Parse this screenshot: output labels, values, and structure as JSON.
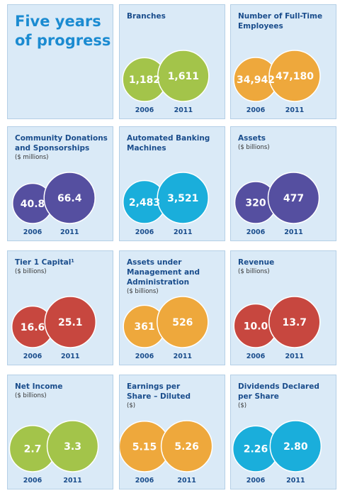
{
  "page": {
    "title": "Five years\nof progress"
  },
  "chart_data": [
    {
      "type": "bubble",
      "title": "Branches",
      "unit": "",
      "colors": [
        "#a3c44a",
        "#a3c44a"
      ],
      "categories": [
        "2006",
        "2011"
      ],
      "values": [
        1182,
        1611
      ],
      "labels": [
        "1,182",
        "1,611"
      ]
    },
    {
      "type": "bubble",
      "title": "Number of Full-Time\nEmployees",
      "unit": "",
      "colors": [
        "#eea83c",
        "#eea83c"
      ],
      "categories": [
        "2006",
        "2011"
      ],
      "values": [
        34942,
        47180
      ],
      "labels": [
        "34,942",
        "47,180"
      ]
    },
    {
      "type": "bubble",
      "title": "Community Donations\nand Sponsorships",
      "unit": "($ millions)",
      "colors": [
        "#554fa0",
        "#554fa0"
      ],
      "categories": [
        "2006",
        "2011"
      ],
      "values": [
        40.8,
        66.4
      ],
      "labels": [
        "40.8",
        "66.4"
      ]
    },
    {
      "type": "bubble",
      "title": "Automated Banking\nMachines",
      "unit": "",
      "colors": [
        "#1aaedb",
        "#1aaedb"
      ],
      "categories": [
        "2006",
        "2011"
      ],
      "values": [
        2483,
        3521
      ],
      "labels": [
        "2,483",
        "3,521"
      ]
    },
    {
      "type": "bubble",
      "title": "Assets",
      "unit": "($ billions)",
      "colors": [
        "#554fa0",
        "#554fa0"
      ],
      "categories": [
        "2006",
        "2011"
      ],
      "values": [
        320,
        477
      ],
      "labels": [
        "320",
        "477"
      ]
    },
    {
      "type": "bubble",
      "title": "Tier 1 Capital¹",
      "unit": "($ billions)",
      "colors": [
        "#c7473f",
        "#c7473f"
      ],
      "categories": [
        "2006",
        "2011"
      ],
      "values": [
        16.6,
        25.1
      ],
      "labels": [
        "16.6",
        "25.1"
      ]
    },
    {
      "type": "bubble",
      "title": "Assets under\nManagement and\nAdministration",
      "unit": "($ billions)",
      "colors": [
        "#eea83c",
        "#eea83c"
      ],
      "categories": [
        "2006",
        "2011"
      ],
      "values": [
        361,
        526
      ],
      "labels": [
        "361",
        "526"
      ]
    },
    {
      "type": "bubble",
      "title": "Revenue",
      "unit": "($ billions)",
      "colors": [
        "#c7473f",
        "#c7473f"
      ],
      "categories": [
        "2006",
        "2011"
      ],
      "values": [
        10.0,
        13.7
      ],
      "labels": [
        "10.0",
        "13.7"
      ]
    },
    {
      "type": "bubble",
      "title": "Net Income",
      "unit": "($ billions)",
      "colors": [
        "#a3c44a",
        "#a3c44a"
      ],
      "categories": [
        "2006",
        "2011"
      ],
      "values": [
        2.7,
        3.3
      ],
      "labels": [
        "2.7",
        "3.3"
      ]
    },
    {
      "type": "bubble",
      "title": "Earnings per\nShare – Diluted",
      "unit": "($)",
      "colors": [
        "#eea83c",
        "#eea83c"
      ],
      "categories": [
        "2006",
        "2011"
      ],
      "values": [
        5.15,
        5.26
      ],
      "labels": [
        "5.15",
        "5.26"
      ]
    },
    {
      "type": "bubble",
      "title": "Dividends Declared\nper Share",
      "unit": "($)",
      "colors": [
        "#1aaedb",
        "#1aaedb"
      ],
      "categories": [
        "2006",
        "2011"
      ],
      "values": [
        2.26,
        2.8
      ],
      "labels": [
        "2.26",
        "2.80"
      ]
    }
  ]
}
